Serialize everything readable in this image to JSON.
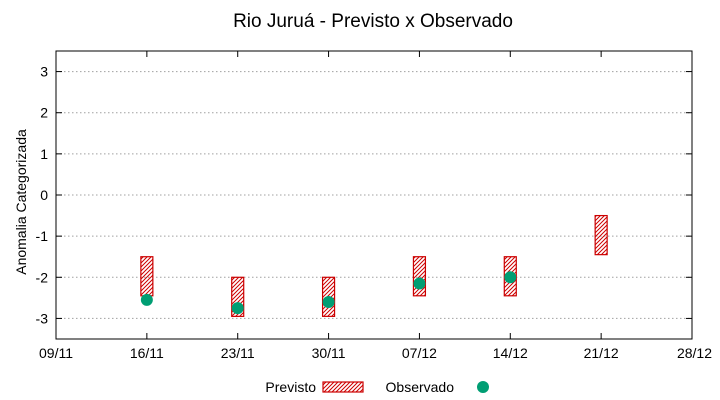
{
  "chart_data": {
    "type": "range-and-scatter",
    "title": "Rio Juruá - Previsto x Observado",
    "xlabel": "",
    "ylabel": "Anomalia Categorizada",
    "x_ticks": [
      "09/11",
      "16/11",
      "23/11",
      "30/11",
      "07/12",
      "14/12",
      "21/12",
      "28/12"
    ],
    "y_ticks": [
      "3",
      "2",
      "1",
      "0",
      "-1",
      "-2",
      "-3"
    ],
    "ylim": [
      -3.5,
      3.5
    ],
    "grid": true,
    "legend": "bottom",
    "colors": {
      "previsto": "#cc0000",
      "observado": "#009e73",
      "grid": "#a0a0a0"
    },
    "series": [
      {
        "name": "Previsto",
        "kind": "range",
        "points": [
          {
            "x": "16/11",
            "low": -2.45,
            "high": -1.5
          },
          {
            "x": "23/11",
            "low": -2.95,
            "high": -2.0
          },
          {
            "x": "30/11",
            "low": -2.95,
            "high": -2.0
          },
          {
            "x": "07/12",
            "low": -2.45,
            "high": -1.5
          },
          {
            "x": "14/12",
            "low": -2.45,
            "high": -1.5
          },
          {
            "x": "21/12",
            "low": -1.45,
            "high": -0.5
          }
        ]
      },
      {
        "name": "Observado",
        "kind": "points",
        "points": [
          {
            "x": "16/11",
            "y": -2.55
          },
          {
            "x": "23/11",
            "y": -2.75
          },
          {
            "x": "30/11",
            "y": -2.6
          },
          {
            "x": "07/12",
            "y": -2.15
          },
          {
            "x": "14/12",
            "y": -2.0
          }
        ]
      }
    ]
  }
}
